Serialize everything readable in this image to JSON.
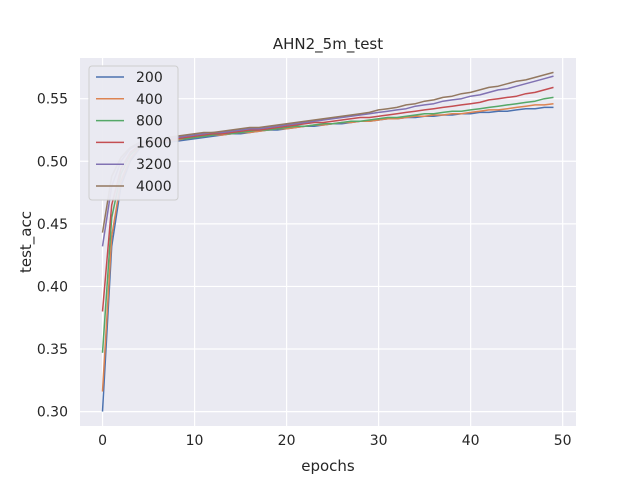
{
  "chart_data": {
    "type": "line",
    "title": "AHN2_5m_test",
    "xlabel": "epochs",
    "ylabel": "test_acc",
    "xlim": [
      -2.45,
      51.45
    ],
    "ylim": [
      0.2885,
      0.5825
    ],
    "xticks": [
      0,
      10,
      20,
      30,
      40,
      50
    ],
    "xtick_labels": [
      "0",
      "10",
      "20",
      "30",
      "40",
      "50"
    ],
    "yticks": [
      0.3,
      0.35,
      0.4,
      0.45,
      0.5,
      0.55
    ],
    "ytick_labels": [
      "0.30",
      "0.35",
      "0.40",
      "0.45",
      "0.50",
      "0.55"
    ],
    "grid": true,
    "legend_position": "top-left",
    "x": [
      0,
      1,
      2,
      3,
      4,
      5,
      6,
      7,
      8,
      9,
      10,
      11,
      12,
      13,
      14,
      15,
      16,
      17,
      18,
      19,
      20,
      21,
      22,
      23,
      24,
      25,
      26,
      27,
      28,
      29,
      30,
      31,
      32,
      33,
      34,
      35,
      36,
      37,
      38,
      39,
      40,
      41,
      42,
      43,
      44,
      45,
      46,
      47,
      48,
      49
    ],
    "series": [
      {
        "name": "200",
        "color": "#4c72b0",
        "values": [
          0.3,
          0.432,
          0.48,
          0.5,
          0.51,
          0.513,
          0.514,
          0.515,
          0.516,
          0.517,
          0.518,
          0.519,
          0.52,
          0.521,
          0.522,
          0.522,
          0.523,
          0.524,
          0.525,
          0.525,
          0.526,
          0.527,
          0.528,
          0.528,
          0.529,
          0.53,
          0.53,
          0.531,
          0.532,
          0.532,
          0.533,
          0.534,
          0.534,
          0.535,
          0.535,
          0.536,
          0.536,
          0.537,
          0.537,
          0.538,
          0.538,
          0.539,
          0.539,
          0.54,
          0.54,
          0.541,
          0.542,
          0.542,
          0.543,
          0.543
        ]
      },
      {
        "name": "400",
        "color": "#dd8452",
        "values": [
          0.316,
          0.44,
          0.484,
          0.502,
          0.511,
          0.514,
          0.515,
          0.516,
          0.517,
          0.518,
          0.519,
          0.52,
          0.521,
          0.521,
          0.522,
          0.523,
          0.523,
          0.524,
          0.525,
          0.526,
          0.526,
          0.527,
          0.528,
          0.529,
          0.529,
          0.53,
          0.531,
          0.531,
          0.532,
          0.532,
          0.533,
          0.534,
          0.534,
          0.535,
          0.536,
          0.536,
          0.537,
          0.537,
          0.538,
          0.538,
          0.539,
          0.54,
          0.541,
          0.541,
          0.542,
          0.543,
          0.544,
          0.545,
          0.545,
          0.546
        ]
      },
      {
        "name": "800",
        "color": "#55a868",
        "values": [
          0.347,
          0.455,
          0.49,
          0.505,
          0.512,
          0.515,
          0.516,
          0.517,
          0.518,
          0.518,
          0.519,
          0.52,
          0.521,
          0.522,
          0.522,
          0.523,
          0.524,
          0.525,
          0.525,
          0.526,
          0.527,
          0.528,
          0.528,
          0.529,
          0.53,
          0.53,
          0.531,
          0.532,
          0.532,
          0.533,
          0.534,
          0.535,
          0.535,
          0.536,
          0.537,
          0.538,
          0.538,
          0.539,
          0.54,
          0.54,
          0.541,
          0.542,
          0.543,
          0.544,
          0.545,
          0.546,
          0.547,
          0.548,
          0.55,
          0.551
        ]
      },
      {
        "name": "1600",
        "color": "#c44e52",
        "values": [
          0.38,
          0.465,
          0.494,
          0.507,
          0.513,
          0.515,
          0.516,
          0.517,
          0.518,
          0.519,
          0.52,
          0.521,
          0.522,
          0.522,
          0.523,
          0.524,
          0.525,
          0.525,
          0.526,
          0.527,
          0.528,
          0.529,
          0.53,
          0.531,
          0.531,
          0.532,
          0.533,
          0.534,
          0.535,
          0.535,
          0.536,
          0.537,
          0.538,
          0.539,
          0.54,
          0.541,
          0.542,
          0.543,
          0.544,
          0.545,
          0.546,
          0.547,
          0.549,
          0.55,
          0.551,
          0.552,
          0.554,
          0.555,
          0.557,
          0.559
        ]
      },
      {
        "name": "3200",
        "color": "#8172b3",
        "values": [
          0.432,
          0.48,
          0.5,
          0.51,
          0.514,
          0.516,
          0.517,
          0.518,
          0.519,
          0.52,
          0.521,
          0.522,
          0.523,
          0.523,
          0.524,
          0.525,
          0.526,
          0.526,
          0.527,
          0.528,
          0.529,
          0.53,
          0.531,
          0.532,
          0.533,
          0.534,
          0.535,
          0.536,
          0.537,
          0.538,
          0.539,
          0.54,
          0.541,
          0.542,
          0.544,
          0.545,
          0.546,
          0.548,
          0.549,
          0.55,
          0.552,
          0.553,
          0.555,
          0.557,
          0.558,
          0.56,
          0.562,
          0.564,
          0.566,
          0.568
        ]
      },
      {
        "name": "4000",
        "color": "#937860",
        "values": [
          0.443,
          0.488,
          0.503,
          0.511,
          0.515,
          0.517,
          0.518,
          0.519,
          0.52,
          0.521,
          0.522,
          0.523,
          0.523,
          0.524,
          0.525,
          0.526,
          0.527,
          0.527,
          0.528,
          0.529,
          0.53,
          0.531,
          0.532,
          0.533,
          0.534,
          0.535,
          0.536,
          0.537,
          0.538,
          0.539,
          0.541,
          0.542,
          0.543,
          0.545,
          0.546,
          0.548,
          0.549,
          0.551,
          0.552,
          0.554,
          0.555,
          0.557,
          0.559,
          0.56,
          0.562,
          0.564,
          0.565,
          0.567,
          0.569,
          0.571
        ]
      }
    ]
  }
}
